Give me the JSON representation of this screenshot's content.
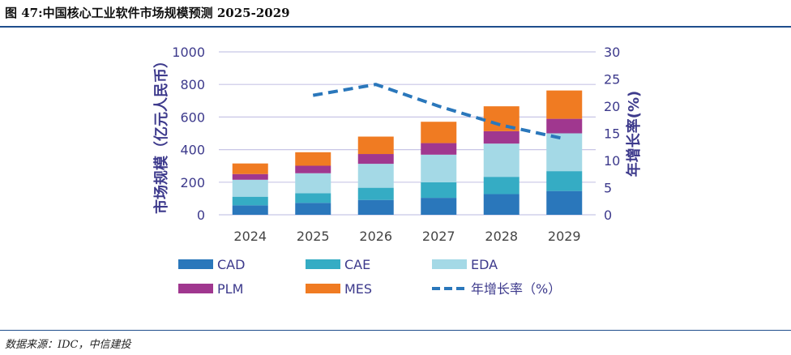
{
  "title": "图 47:中国核心工业软件市场规模预测 2025-2029",
  "source": "数据来源：IDC，中信建投",
  "chart_data": {
    "type": "bar",
    "stacked": true,
    "categories": [
      "2024",
      "2025",
      "2026",
      "2027",
      "2028",
      "2029"
    ],
    "series": [
      {
        "name": "CAD",
        "color": "#2a77bb",
        "values": [
          58,
          73,
          91,
          104,
          127,
          146
        ]
      },
      {
        "name": "CAE",
        "color": "#35acc4",
        "values": [
          53,
          59,
          75,
          95,
          106,
          122
        ]
      },
      {
        "name": "EDA",
        "color": "#a4d9e6",
        "values": [
          104,
          123,
          147,
          170,
          204,
          232
        ]
      },
      {
        "name": "PLM",
        "color": "#a0378f",
        "values": [
          35,
          46,
          60,
          71,
          76,
          89
        ]
      },
      {
        "name": "MES",
        "color": "#f07b22",
        "values": [
          65,
          83,
          107,
          131,
          153,
          174
        ]
      }
    ],
    "line_series": {
      "name": "年增长率（%）",
      "color": "#2a77bb",
      "axis": "right",
      "values": [
        null,
        22,
        24,
        20,
        16.5,
        14
      ]
    },
    "ylabel": "市场规模（亿元人民币）",
    "ylabel_right": "年增长率(%)",
    "ylim": [
      0,
      1000
    ],
    "yticks": [
      0,
      200,
      400,
      600,
      800,
      1000
    ],
    "ylim_right": [
      0,
      30
    ],
    "yticks_right": [
      0,
      5,
      10,
      15,
      20,
      25,
      30
    ],
    "grid": true,
    "legend": "bottom"
  }
}
